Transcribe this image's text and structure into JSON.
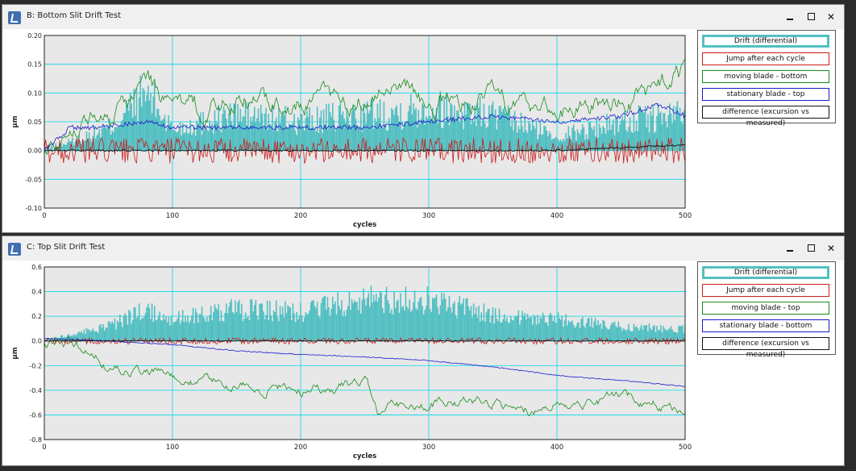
{
  "windows": [
    {
      "title": "B: Bottom Slit Drift Test",
      "legend": [
        {
          "label": "Drift (differential)",
          "color": "#52bfc2"
        },
        {
          "label": "Jump after each cycle",
          "color": "#cc1a1a"
        },
        {
          "label": "moving blade - bottom",
          "color": "#1a8a1a"
        },
        {
          "label": "stationary blade - top",
          "color": "#1a1acc"
        },
        {
          "label": "difference (excursion vs measured)",
          "color": "#111111"
        }
      ],
      "chart_data": {
        "type": "line",
        "xlabel": "cycles",
        "ylabel": "µm",
        "xlim": [
          0,
          500
        ],
        "ylim": [
          -0.1,
          0.2
        ],
        "x_ticks": [
          "0",
          "100",
          "200",
          "300",
          "400",
          "500"
        ],
        "y_ticks": [
          "-0.10",
          "-0.05",
          "0.00",
          "0.05",
          "0.10",
          "0.15",
          "0.20"
        ],
        "grid": true,
        "series": [
          {
            "name": "Drift (differential)",
            "style": "bars",
            "x": [
              0,
              50,
              80,
              100,
              150,
              200,
              250,
              300,
              350,
              400,
              450,
              500
            ],
            "values": [
              0.0,
              0.03,
              0.08,
              0.03,
              0.05,
              0.04,
              0.05,
              0.06,
              0.05,
              0.02,
              0.04,
              0.05
            ]
          },
          {
            "name": "Jump after each cycle",
            "x": [
              0,
              100,
              200,
              300,
              400,
              500
            ],
            "values": [
              0.0,
              0.0,
              0.0,
              0.0,
              0.0,
              0.0
            ]
          },
          {
            "name": "moving blade - bottom",
            "x": [
              0,
              20,
              40,
              60,
              80,
              100,
              150,
              200,
              250,
              270,
              300,
              350,
              400,
              450,
              480,
              500
            ],
            "values": [
              0.0,
              0.05,
              0.06,
              0.07,
              0.13,
              0.06,
              0.09,
              0.08,
              0.09,
              0.14,
              0.08,
              0.09,
              0.07,
              0.08,
              0.11,
              0.13
            ]
          },
          {
            "name": "stationary blade - top",
            "x": [
              0,
              20,
              40,
              80,
              100,
              150,
              200,
              250,
              300,
              350,
              400,
              450,
              480,
              500
            ],
            "values": [
              0.0,
              0.04,
              0.04,
              0.05,
              0.04,
              0.04,
              0.04,
              0.04,
              0.05,
              0.06,
              0.05,
              0.06,
              0.08,
              0.06
            ]
          },
          {
            "name": "difference (excursion vs measured)",
            "x": [
              0,
              100,
              200,
              300,
              400,
              500
            ],
            "values": [
              0.0,
              0.0,
              0.0,
              0.0,
              0.0,
              0.01
            ]
          }
        ]
      }
    },
    {
      "title": "C: Top Slit Drift Test",
      "legend": [
        {
          "label": "Drift (differential)",
          "color": "#52bfc2"
        },
        {
          "label": "Jump after each cycle",
          "color": "#cc1a1a"
        },
        {
          "label": "moving blade - top",
          "color": "#1a8a1a"
        },
        {
          "label": "stationary blade - bottom",
          "color": "#1a1acc"
        },
        {
          "label": "difference (excursion vs measured)",
          "color": "#111111"
        }
      ],
      "chart_data": {
        "type": "line",
        "xlabel": "cycles",
        "ylabel": "µm",
        "xlim": [
          0,
          500
        ],
        "ylim": [
          -0.8,
          0.6
        ],
        "x_ticks": [
          "0",
          "100",
          "200",
          "300",
          "400",
          "500"
        ],
        "y_ticks": [
          "-0.8",
          "-0.6",
          "-0.4",
          "-0.2",
          "0.0",
          "0.2",
          "0.4",
          "0.6"
        ],
        "grid": true,
        "series": [
          {
            "name": "Drift (differential)",
            "style": "bars",
            "x": [
              0,
              50,
              80,
              100,
              150,
              200,
              250,
              300,
              350,
              400,
              450,
              500
            ],
            "values": [
              0.0,
              0.1,
              0.22,
              0.15,
              0.22,
              0.2,
              0.28,
              0.28,
              0.18,
              0.15,
              0.1,
              0.08
            ]
          },
          {
            "name": "Jump after each cycle",
            "x": [
              0,
              100,
              200,
              300,
              400,
              500
            ],
            "values": [
              0.0,
              0.0,
              0.0,
              0.0,
              0.0,
              0.0
            ]
          },
          {
            "name": "moving blade - top",
            "x": [
              0,
              40,
              50,
              80,
              100,
              150,
              200,
              250,
              260,
              300,
              350,
              370,
              400,
              450,
              500
            ],
            "values": [
              0.0,
              -0.05,
              -0.2,
              -0.25,
              -0.3,
              -0.35,
              -0.4,
              -0.35,
              -0.55,
              -0.5,
              -0.5,
              -0.6,
              -0.5,
              -0.45,
              -0.55
            ]
          },
          {
            "name": "stationary blade - bottom",
            "x": [
              0,
              50,
              100,
              150,
              200,
              250,
              300,
              350,
              400,
              450,
              500
            ],
            "values": [
              0.02,
              0.0,
              -0.03,
              -0.08,
              -0.11,
              -0.13,
              -0.16,
              -0.21,
              -0.28,
              -0.32,
              -0.37
            ]
          },
          {
            "name": "difference (excursion vs measured)",
            "x": [
              0,
              100,
              200,
              300,
              400,
              500
            ],
            "values": [
              0.0,
              0.0,
              0.0,
              0.0,
              0.0,
              0.0
            ]
          }
        ]
      }
    }
  ]
}
